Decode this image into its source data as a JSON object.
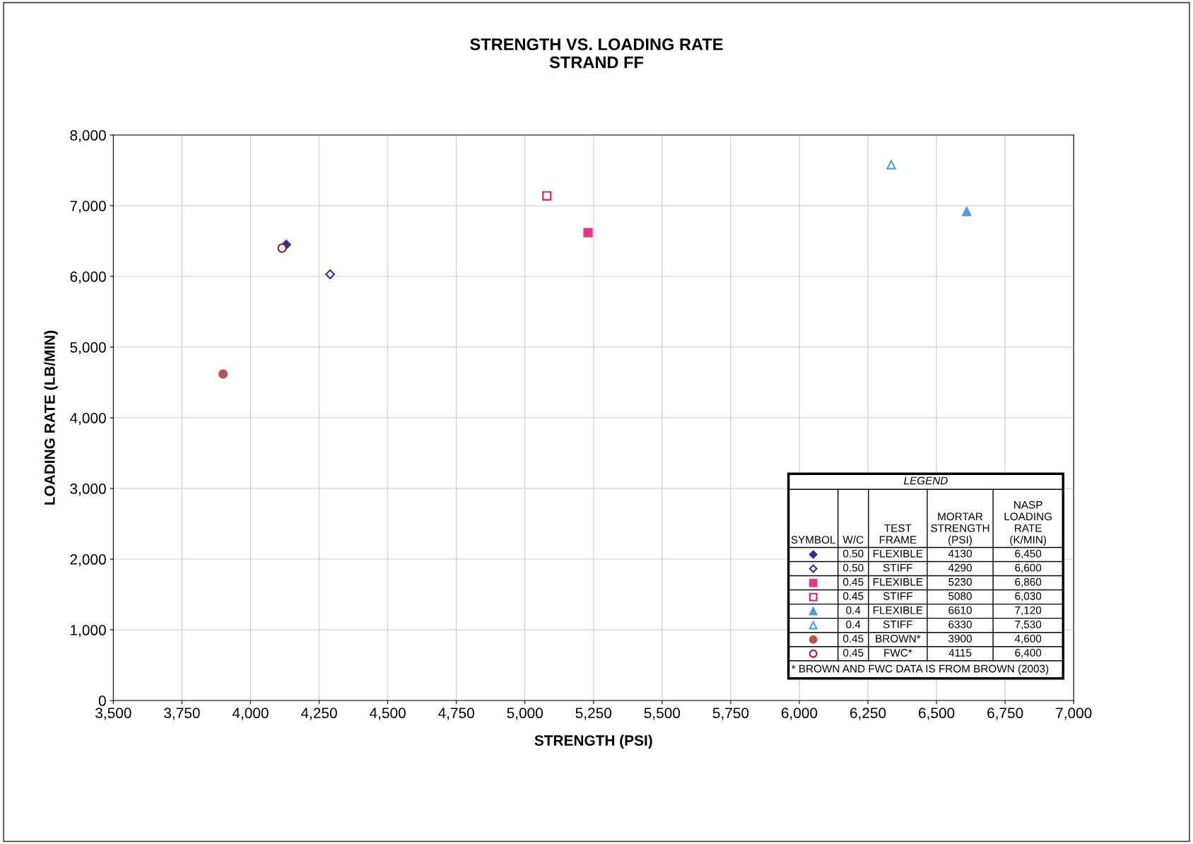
{
  "chart_data": {
    "type": "scatter",
    "title": "STRENGTH VS. LOADING RATE\nSTRAND FF",
    "xlabel": "STRENGTH (PSI)",
    "ylabel": "LOADING RATE (LB/MIN)",
    "legend_title": "LEGEND",
    "series": [
      {
        "x": [
          4130
        ],
        "values": [
          6450
        ],
        "color": "#2e3192",
        "marker": "diamond"
      },
      {
        "x": [
          4290
        ],
        "values": [
          6030
        ],
        "color": "#2e3192",
        "colors": [
          "#ffffff"
        ],
        "marker": "diamond"
      },
      {
        "x": [
          5230
        ],
        "values": [
          6620
        ],
        "color": "#e8358a",
        "marker": "square"
      },
      {
        "x": [
          5080
        ],
        "values": [
          7140
        ],
        "color": "#d81b6a",
        "colors": [
          "#ffffff"
        ],
        "marker": "square"
      },
      {
        "x": [
          6610
        ],
        "values": [
          6920
        ],
        "color": "#4a9fe0",
        "marker": "triangle"
      },
      {
        "x": [
          6335
        ],
        "values": [
          7580
        ],
        "color": "#4a9fe0",
        "colors": [
          "#ffffff"
        ],
        "marker": "triangle"
      },
      {
        "x": [
          3900
        ],
        "values": [
          4620
        ],
        "color": "#c0504d",
        "marker": "circle"
      },
      {
        "x": [
          4115
        ],
        "values": [
          6400
        ],
        "color": "#a02020",
        "colors": [
          "#ffffff"
        ],
        "marker": "circle"
      }
    ],
    "annotations": [
      "SYMBOL",
      "W/C",
      "TEST\nFRAME",
      "MORTAR\nSTRENGTH\n(PSI)",
      "NASP\nLOADING\nRATE\n(K/MIN)",
      "0.50",
      "FLEXIBLE",
      "4130",
      "6,450",
      "0.50",
      "STIFF",
      "4290",
      "6,600",
      "0.45",
      "FLEXIBLE",
      "5230",
      "6,860",
      "0.45",
      "STIFF",
      "5080",
      "6,030",
      "0.4",
      "FLEXIBLE",
      "6610",
      "7,120",
      "0.4",
      "STIFF",
      "6330",
      "7,530",
      "0.45",
      "BROWN*",
      "3900",
      "4,600",
      "0.45",
      "FWC*",
      "4115",
      "6,400",
      "* BROWN AND FWC DATA IS FROM BROWN (2003)"
    ],
    "xlim": [
      3500,
      7000
    ],
    "ylim": [
      0,
      8000
    ],
    "xticks": [
      {
        "value": 3500,
        "label": "3,500"
      },
      {
        "value": 3750,
        "label": "3,750"
      },
      {
        "value": 4000,
        "label": "4,000"
      },
      {
        "value": 4250,
        "label": "4,250"
      },
      {
        "value": 4500,
        "label": "4,500"
      },
      {
        "value": 4750,
        "label": "4,750"
      },
      {
        "value": 5000,
        "label": "5,000"
      },
      {
        "value": 5250,
        "label": "5,250"
      },
      {
        "value": 5500,
        "label": "5,500"
      },
      {
        "value": 5750,
        "label": "5,750"
      },
      {
        "value": 6000,
        "label": "6,000"
      },
      {
        "value": 6250,
        "label": "6,250"
      },
      {
        "value": 6500,
        "label": "6,500"
      },
      {
        "value": 6750,
        "label": "6,750"
      },
      {
        "value": 7000,
        "label": "7,000"
      }
    ],
    "yticks": [
      0,
      {
        "value": 1000,
        "label": "1,000"
      },
      {
        "value": 2000,
        "label": "2,000"
      },
      {
        "value": 3000,
        "label": "3,000"
      },
      {
        "value": 4000,
        "label": "4,000"
      },
      {
        "value": 5000,
        "label": "5,000"
      },
      {
        "value": 6000,
        "label": "6,000"
      },
      {
        "value": 7000,
        "label": "7,000"
      },
      {
        "value": 8000,
        "label": "8,000"
      }
    ],
    "grid": true
  }
}
